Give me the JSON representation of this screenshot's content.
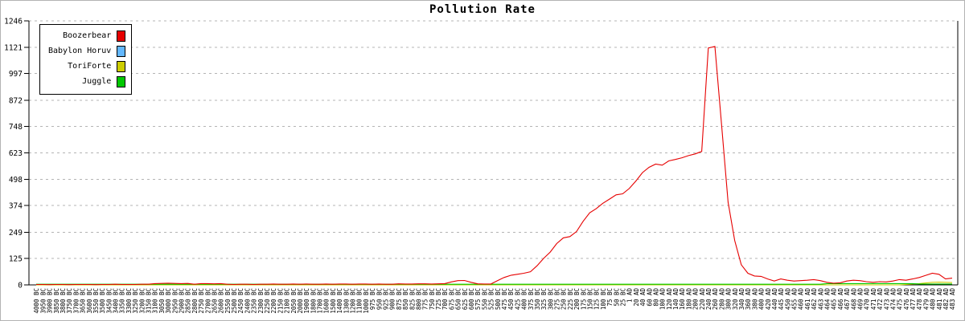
{
  "chart_data": {
    "type": "line",
    "title": "Pollution Rate",
    "xlabel": "",
    "ylabel": "",
    "ylim": [
      0,
      1246
    ],
    "y_ticks": [
      0,
      125,
      249,
      374,
      498,
      623,
      748,
      872,
      997,
      1121,
      1246
    ],
    "grid": "horizontal-dashed",
    "legend_position": "top-left",
    "x_labels": [
      "4000 BC",
      "3950 BC",
      "3900 BC",
      "3850 BC",
      "3800 BC",
      "3750 BC",
      "3700 BC",
      "3650 BC",
      "3600 BC",
      "3550 BC",
      "3500 BC",
      "3450 BC",
      "3400 BC",
      "3350 BC",
      "3300 BC",
      "3250 BC",
      "3200 BC",
      "3150 BC",
      "3100 BC",
      "3050 BC",
      "3000 BC",
      "2950 BC",
      "2900 BC",
      "2850 BC",
      "2800 BC",
      "2750 BC",
      "2700 BC",
      "2650 BC",
      "2600 BC",
      "2550 BC",
      "2500 BC",
      "2450 BC",
      "2400 BC",
      "2350 BC",
      "2300 BC",
      "2250 BC",
      "2200 BC",
      "2150 BC",
      "2100 BC",
      "2050 BC",
      "2000 BC",
      "1900 BC",
      "1800 BC",
      "1700 BC",
      "1600 BC",
      "1500 BC",
      "1400 BC",
      "1300 BC",
      "1200 BC",
      "1100 BC",
      "1000 BC",
      "975 BC",
      "950 BC",
      "925 BC",
      "900 BC",
      "875 BC",
      "850 BC",
      "825 BC",
      "800 BC",
      "775 BC",
      "750 BC",
      "725 BC",
      "700 BC",
      "675 BC",
      "650 BC",
      "625 BC",
      "600 BC",
      "575 BC",
      "550 BC",
      "525 BC",
      "500 BC",
      "475 BC",
      "450 BC",
      "425 BC",
      "400 BC",
      "375 BC",
      "350 BC",
      "325 BC",
      "300 BC",
      "275 BC",
      "250 BC",
      "225 BC",
      "200 BC",
      "175 BC",
      "150 BC",
      "125 BC",
      "100 BC",
      "75 BC",
      "50 BC",
      "25 BC",
      "1 AD",
      "20 AD",
      "40 AD",
      "60 AD",
      "80 AD",
      "100 AD",
      "120 AD",
      "140 AD",
      "160 AD",
      "180 AD",
      "200 AD",
      "220 AD",
      "240 AD",
      "260 AD",
      "280 AD",
      "300 AD",
      "320 AD",
      "340 AD",
      "360 AD",
      "380 AD",
      "400 AD",
      "420 AD",
      "440 AD",
      "445 AD",
      "450 AD",
      "455 AD",
      "460 AD",
      "461 AD",
      "462 AD",
      "463 AD",
      "464 AD",
      "465 AD",
      "466 AD",
      "467 AD",
      "468 AD",
      "469 AD",
      "470 AD",
      "471 AD",
      "472 AD",
      "473 AD",
      "474 AD",
      "475 AD",
      "476 AD",
      "477 AD",
      "478 AD",
      "479 AD",
      "480 AD",
      "481 AD",
      "482 AD",
      "483 AD"
    ],
    "series": [
      {
        "name": "Boozerbear",
        "color": "#e60000",
        "z": 4,
        "values": [
          2,
          2,
          1,
          2,
          2,
          1,
          2,
          2,
          2,
          1,
          2,
          2,
          3,
          2,
          2,
          2,
          3,
          3,
          6,
          7,
          8,
          7,
          6,
          7,
          3,
          6,
          6,
          5,
          6,
          3,
          2,
          3,
          3,
          2,
          3,
          3,
          4,
          3,
          3,
          4,
          3,
          4,
          3,
          3,
          4,
          3,
          4,
          4,
          3,
          4,
          4,
          3,
          4,
          3,
          3,
          5,
          4,
          4,
          5,
          5,
          4,
          5,
          6,
          14,
          20,
          21,
          12,
          5,
          4,
          4,
          20,
          35,
          45,
          50,
          55,
          62,
          90,
          125,
          155,
          195,
          222,
          228,
          252,
          300,
          340,
          360,
          385,
          405,
          425,
          430,
          455,
          490,
          530,
          555,
          570,
          565,
          585,
          592,
          600,
          610,
          618,
          630,
          1118,
          1125,
          760,
          390,
          210,
          95,
          55,
          42,
          40,
          28,
          18,
          28,
          22,
          18,
          20,
          22,
          25,
          20,
          12,
          8,
          10,
          18,
          22,
          20,
          15,
          12,
          15,
          14,
          18,
          25,
          22,
          28,
          35,
          45,
          55,
          50,
          28,
          32
        ]
      },
      {
        "name": "Babylon Horuv",
        "color": "#63b8ff",
        "z": 1,
        "values": [
          2,
          2,
          2,
          2,
          2,
          2,
          2,
          2,
          2,
          2,
          2,
          2,
          2,
          2,
          2,
          2,
          2,
          2,
          2,
          2,
          2,
          2,
          2,
          2,
          2,
          2,
          2,
          2,
          2,
          2,
          2,
          2,
          2,
          2,
          2,
          2,
          2,
          2,
          2,
          2,
          2,
          2,
          2,
          2,
          2,
          2,
          2,
          2,
          2,
          2,
          2,
          2,
          2,
          2,
          2,
          2,
          2,
          2,
          2,
          2,
          2,
          2,
          2,
          2,
          2,
          2,
          2,
          2,
          2,
          2,
          2,
          2,
          2,
          2,
          2,
          2,
          2,
          2,
          2,
          2,
          2,
          2,
          2,
          2,
          2,
          2,
          2,
          2,
          2,
          2,
          null,
          null,
          null,
          null,
          null,
          null,
          null,
          null,
          null,
          null,
          null,
          null,
          null,
          null,
          null,
          null,
          null,
          null,
          null,
          null,
          null,
          null,
          null,
          null,
          null,
          null,
          null,
          null,
          null,
          null,
          null,
          null,
          null,
          null,
          null,
          null,
          null,
          null,
          null,
          null,
          null,
          null,
          null,
          null,
          null,
          null,
          null,
          null,
          null,
          null
        ]
      },
      {
        "name": "ToriForte",
        "color": "#cdcd00",
        "z": 2,
        "values": [
          0,
          0,
          0,
          0,
          0,
          0,
          0,
          0,
          0,
          0,
          0,
          0,
          0,
          0,
          0,
          0,
          0,
          0,
          0,
          0,
          0,
          0,
          0,
          0,
          0,
          0,
          0,
          0,
          0,
          0,
          0,
          0,
          0,
          0,
          0,
          0,
          0,
          0,
          0,
          0,
          0,
          0,
          0,
          0,
          0,
          0,
          0,
          0,
          0,
          0,
          0,
          0,
          0,
          0,
          0,
          0,
          0,
          0,
          0,
          0,
          0,
          0,
          0,
          0,
          0,
          0,
          0,
          0,
          0,
          0,
          0,
          0,
          0,
          0,
          0,
          0,
          0,
          0,
          0,
          0,
          0,
          0,
          0,
          0,
          0,
          0,
          0,
          0,
          0,
          0,
          0,
          0,
          0,
          0,
          0,
          0,
          0,
          0,
          0,
          0,
          0,
          0,
          0,
          0,
          0,
          0,
          0,
          0,
          0,
          0,
          0,
          0,
          0,
          0,
          0,
          0,
          0,
          0,
          0,
          0,
          0,
          0,
          0,
          0,
          0,
          0,
          0,
          0,
          0,
          0,
          0,
          0,
          2,
          4,
          6,
          9,
          12,
          13,
          12,
          11
        ]
      },
      {
        "name": "Juggle",
        "color": "#00c800",
        "z": 3,
        "values": [
          3,
          3,
          3,
          3,
          3,
          3,
          3,
          3,
          3,
          3,
          3,
          3,
          3,
          3,
          3,
          3,
          3,
          3,
          3,
          3,
          3,
          3,
          3,
          3,
          3,
          3,
          3,
          3,
          3,
          3,
          3,
          3,
          3,
          3,
          3,
          3,
          3,
          3,
          3,
          3,
          3,
          3,
          3,
          3,
          3,
          3,
          3,
          3,
          3,
          3,
          3,
          3,
          3,
          3,
          3,
          3,
          3,
          3,
          3,
          3,
          3,
          3,
          3,
          3,
          3,
          3,
          3,
          3,
          3,
          3,
          3,
          3,
          3,
          3,
          3,
          3,
          3,
          3,
          3,
          3,
          3,
          3,
          3,
          3,
          3,
          3,
          3,
          3,
          3,
          3,
          3,
          3,
          3,
          3,
          3,
          3,
          3,
          3,
          3,
          3,
          3,
          3,
          3,
          3,
          3,
          3,
          3,
          3,
          3,
          3,
          3,
          3,
          3,
          3,
          3,
          3,
          3,
          3,
          3,
          3,
          6,
          6,
          6,
          6,
          6,
          6,
          6,
          6,
          6,
          6,
          6,
          6,
          6,
          6,
          4,
          4,
          4,
          4,
          4,
          4
        ]
      }
    ]
  }
}
